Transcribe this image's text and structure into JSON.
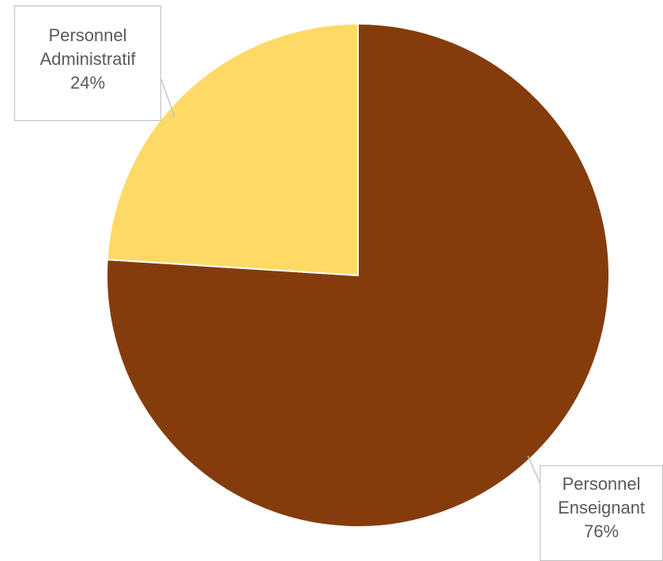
{
  "chart_data": {
    "type": "pie",
    "slices": [
      {
        "label_line1": "Personnel",
        "label_line2": "Enseignant",
        "percent_label": "76%",
        "value": 76,
        "color": "#843C0C"
      },
      {
        "label_line1": "Personnel",
        "label_line2": "Administratif",
        "percent_label": "24%",
        "value": 24,
        "color": "#FFD966"
      }
    ],
    "start_angle_deg": 0,
    "direction": "clockwise",
    "label_style": "callout"
  }
}
